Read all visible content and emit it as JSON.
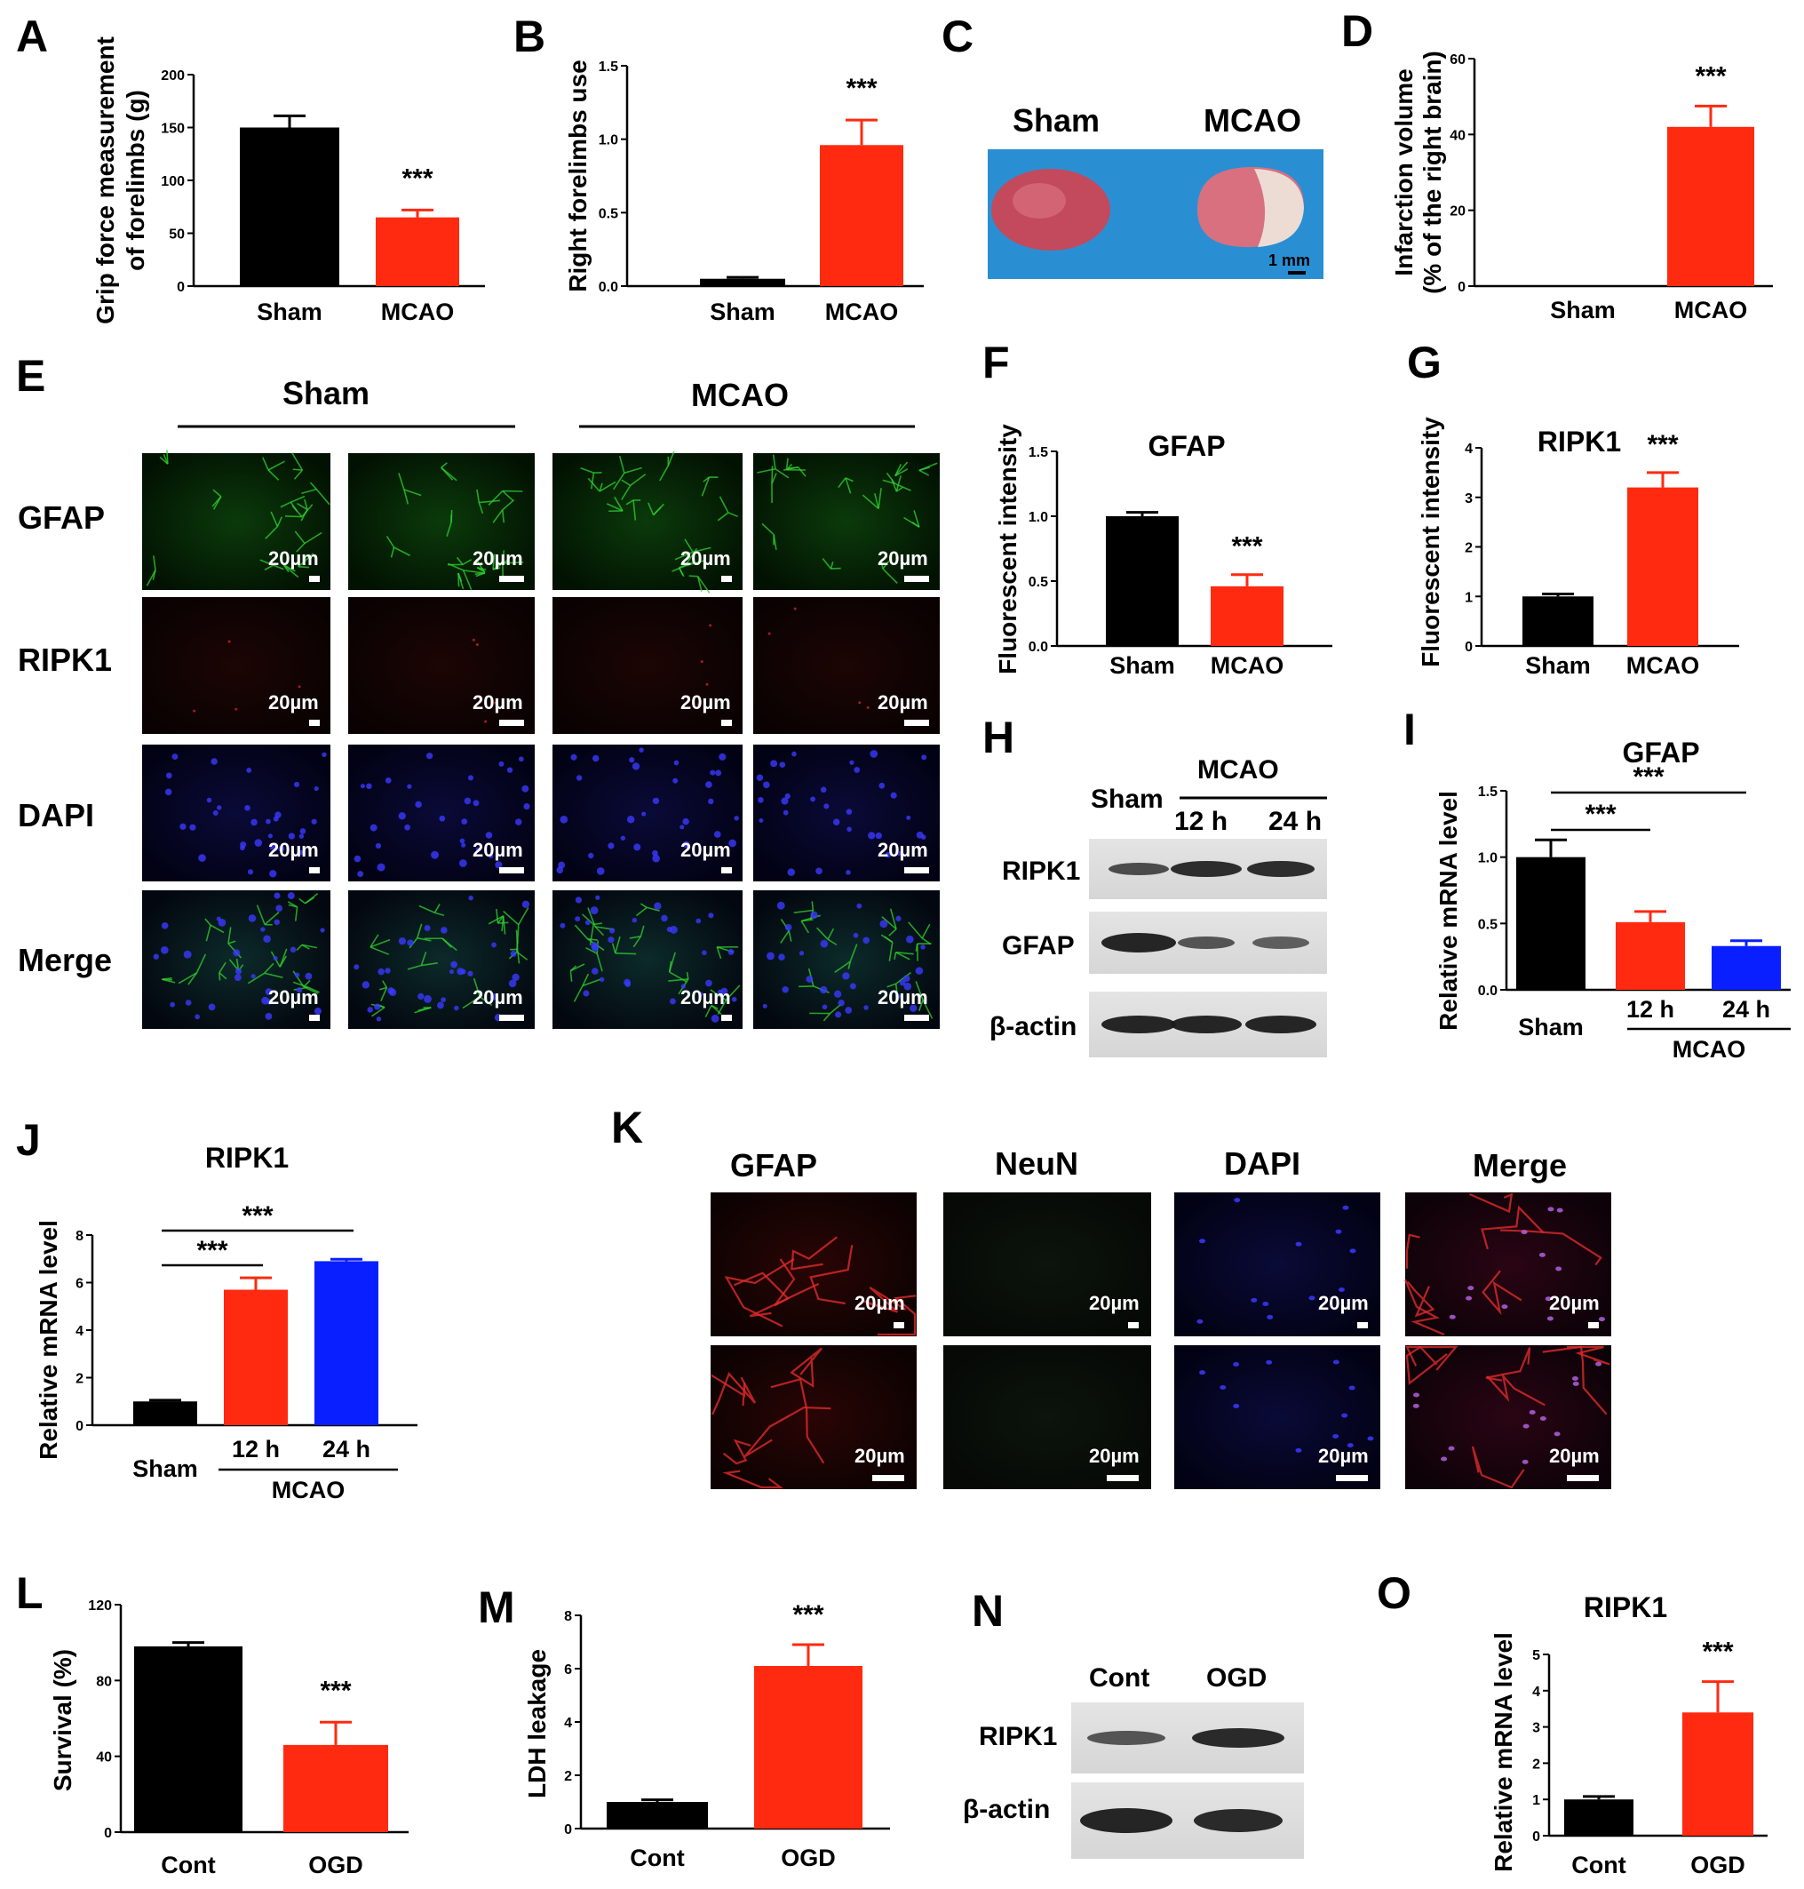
{
  "panels": {
    "A": "A",
    "B": "B",
    "C": "C",
    "D": "D",
    "E": "E",
    "F": "F",
    "G": "G",
    "H": "H",
    "I": "I",
    "J": "J",
    "K": "K",
    "L": "L",
    "M": "M",
    "N": "N",
    "O": "O"
  },
  "colors": {
    "black": "#000000",
    "red": "#ff2a10",
    "blue": "#0a1fff",
    "green": "#1ec81e"
  },
  "sig": "***",
  "scale_bar": "20µm",
  "panel_c": {
    "sham": "Sham",
    "mcao": "MCAO",
    "scale": "1 mm"
  },
  "panel_e": {
    "groups": [
      "Sham",
      "MCAO"
    ],
    "rows": [
      "GFAP",
      "RIPK1",
      "DAPI",
      "Merge"
    ]
  },
  "panel_h": {
    "sham": "Sham",
    "group": "MCAO",
    "times": [
      "12 h",
      "24 h"
    ],
    "rows": [
      "RIPK1",
      "GFAP",
      "β-actin"
    ]
  },
  "panel_k": {
    "cols": [
      "GFAP",
      "NeuN",
      "DAPI",
      "Merge"
    ]
  },
  "panel_n": {
    "cols": [
      "Cont",
      "OGD"
    ],
    "rows": [
      "RIPK1",
      "β-actin"
    ]
  },
  "group_label": "MCAO",
  "chart_data": [
    {
      "panel": "A",
      "type": "bar",
      "title": "",
      "ylabel": "Grip force measurement of forelimbs (g)",
      "ylabel_lines": [
        "Grip force measurement",
        "of forelimbs (g)"
      ],
      "categories": [
        "Sham",
        "MCAO"
      ],
      "values": [
        150,
        65
      ],
      "errors": [
        11,
        7
      ],
      "ylim": [
        0,
        200
      ],
      "yticks": [
        "0",
        "50",
        "100",
        "150",
        "200"
      ],
      "sig": [
        "",
        "***"
      ]
    },
    {
      "panel": "B",
      "type": "bar",
      "title": "",
      "ylabel": "Right forelimbs use",
      "categories": [
        "Sham",
        "MCAO"
      ],
      "values": [
        0.05,
        0.96
      ],
      "errors": [
        0.01,
        0.17
      ],
      "ylim": [
        0,
        1.5
      ],
      "yticks": [
        "0.0",
        "0.5",
        "1.0",
        "1.5"
      ],
      "sig": [
        "",
        "***"
      ]
    },
    {
      "panel": "D",
      "type": "bar",
      "title": "",
      "ylabel": "Infarction volume (% of the right brain)",
      "ylabel_lines": [
        "Infarction volume",
        "(% of the right brain)"
      ],
      "categories": [
        "Sham",
        "MCAO"
      ],
      "values": [
        0,
        42
      ],
      "errors": [
        0,
        5.5
      ],
      "ylim": [
        0,
        60
      ],
      "yticks": [
        "0",
        "20",
        "40",
        "60"
      ],
      "sig": [
        "",
        "***"
      ]
    },
    {
      "panel": "F",
      "type": "bar",
      "title": "GFAP",
      "ylabel": "Fluorescent intensity",
      "categories": [
        "Sham",
        "MCAO"
      ],
      "values": [
        1.0,
        0.46
      ],
      "errors": [
        0.03,
        0.09
      ],
      "ylim": [
        0,
        1.5
      ],
      "yticks": [
        "0.0",
        "0.5",
        "1.0",
        "1.5"
      ],
      "sig": [
        "",
        "***"
      ]
    },
    {
      "panel": "G",
      "type": "bar",
      "title": "RIPK1",
      "ylabel": "Fluorescent intensity",
      "categories": [
        "Sham",
        "MCAO"
      ],
      "values": [
        1.0,
        3.2
      ],
      "errors": [
        0.05,
        0.3
      ],
      "ylim": [
        0,
        4
      ],
      "yticks": [
        "0",
        "1",
        "2",
        "3",
        "4"
      ],
      "sig": [
        "",
        "***"
      ]
    },
    {
      "panel": "I",
      "type": "bar",
      "title": "GFAP",
      "ylabel": "Relative mRNA level",
      "categories": [
        "Sham",
        "12 h",
        "24 h"
      ],
      "values": [
        1.0,
        0.51,
        0.33
      ],
      "errors": [
        0.13,
        0.08,
        0.04
      ],
      "ylim": [
        0,
        1.5
      ],
      "yticks": [
        "0.0",
        "0.5",
        "1.0",
        "1.5"
      ],
      "brackets": [
        "***",
        "***"
      ]
    },
    {
      "panel": "J",
      "type": "bar",
      "title": "RIPK1",
      "ylabel": "Relative mRNA level",
      "categories": [
        "Sham",
        "12 h",
        "24 h"
      ],
      "values": [
        1.0,
        5.7,
        6.9
      ],
      "errors": [
        0.05,
        0.5,
        0.08
      ],
      "ylim": [
        0,
        8
      ],
      "yticks": [
        "0",
        "2",
        "4",
        "6",
        "8"
      ],
      "brackets": [
        "***",
        "***"
      ]
    },
    {
      "panel": "L",
      "type": "bar",
      "title": "",
      "ylabel": "Survival (%)",
      "categories": [
        "Cont",
        "OGD"
      ],
      "values": [
        98,
        46
      ],
      "errors": [
        2,
        12
      ],
      "ylim": [
        0,
        120
      ],
      "yticks": [
        "0",
        "40",
        "80",
        "120"
      ],
      "sig": [
        "",
        "***"
      ]
    },
    {
      "panel": "M",
      "type": "bar",
      "title": "",
      "ylabel": "LDH leakage",
      "categories": [
        "Cont",
        "OGD"
      ],
      "values": [
        1.0,
        6.1
      ],
      "errors": [
        0.08,
        0.8
      ],
      "ylim": [
        0,
        8
      ],
      "yticks": [
        "0",
        "2",
        "4",
        "6",
        "8"
      ],
      "sig": [
        "",
        "***"
      ]
    },
    {
      "panel": "O",
      "type": "bar",
      "title": "RIPK1",
      "ylabel": "Relative mRNA level",
      "categories": [
        "Cont",
        "OGD"
      ],
      "values": [
        1.0,
        3.4
      ],
      "errors": [
        0.08,
        0.85
      ],
      "ylim": [
        0,
        5
      ],
      "yticks": [
        "0",
        "1",
        "2",
        "3",
        "4",
        "5"
      ],
      "sig": [
        "",
        "***"
      ]
    }
  ]
}
